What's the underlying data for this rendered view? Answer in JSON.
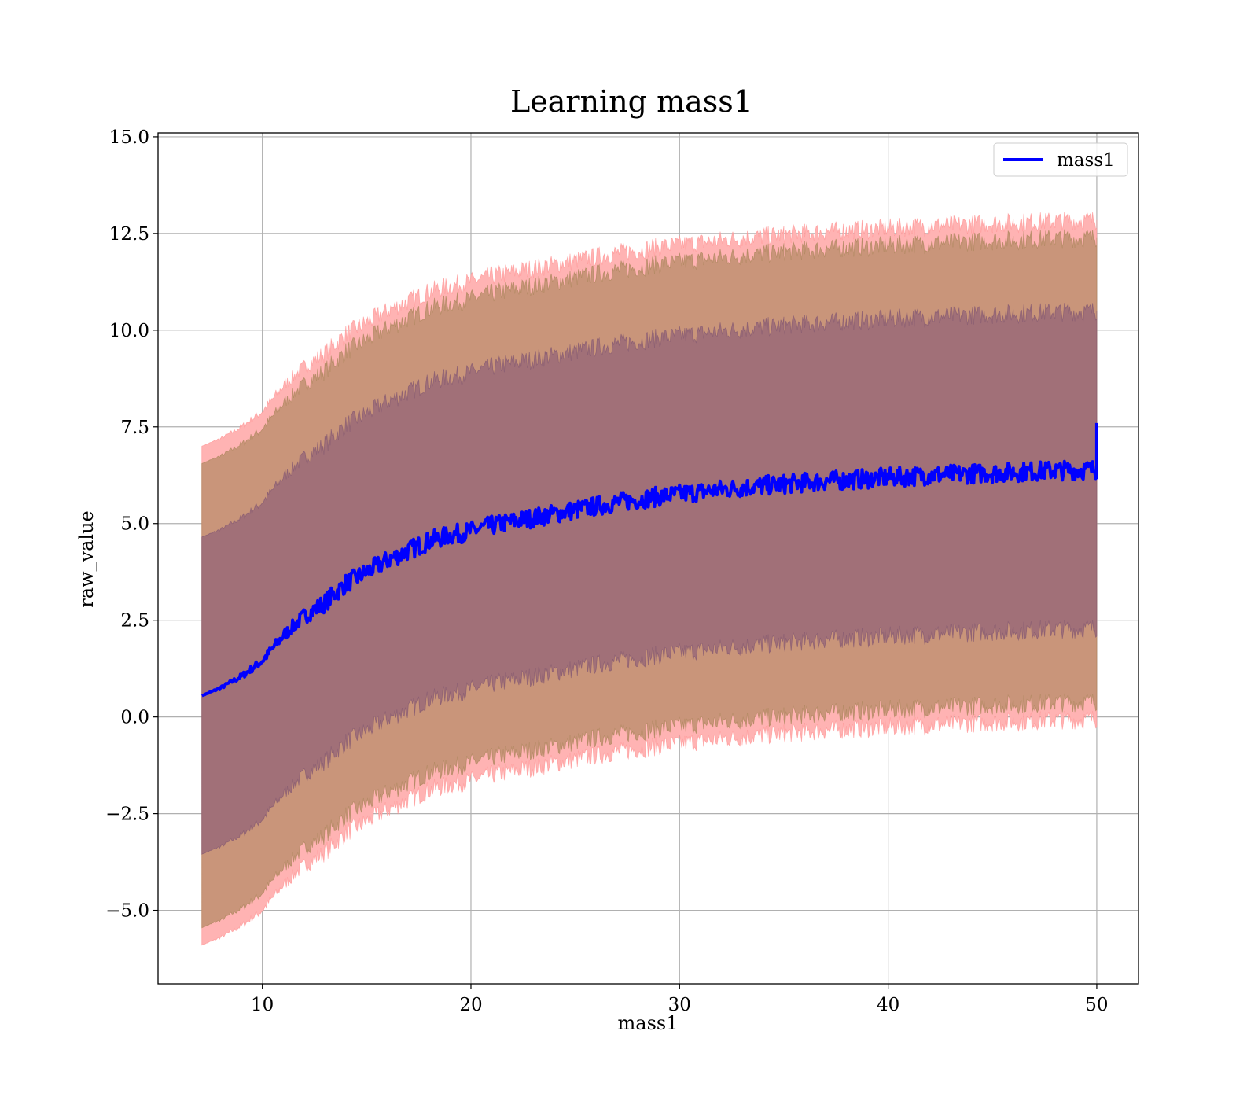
{
  "chart_data": {
    "type": "area",
    "title": "Learning mass1",
    "xlabel": "mass1",
    "ylabel": "raw_value",
    "xlim": [
      5,
      52
    ],
    "ylim": [
      -6.9,
      15.1
    ],
    "xticks": [
      10,
      20,
      30,
      40,
      50
    ],
    "xtick_labels": [
      "10",
      "20",
      "30",
      "40",
      "50"
    ],
    "yticks": [
      -5.0,
      -2.5,
      0.0,
      2.5,
      5.0,
      7.5,
      10.0,
      12.5,
      15.0
    ],
    "ytick_labels": [
      "−5.0",
      "−2.5",
      "0.0",
      "2.5",
      "5.0",
      "7.5",
      "10.0",
      "12.5",
      "15.0"
    ],
    "grid": true,
    "legend": {
      "position": "top-right",
      "entries": [
        "mass1"
      ]
    },
    "colors": {
      "line": "#0000ff",
      "band_outer": "#ffb3b3",
      "band_middle": "#c9957a",
      "band_inner": "#a17078",
      "grid": "#b0b0b0"
    },
    "series": [
      {
        "name": "mass1",
        "x": [
          7.1,
          8,
          9,
          10,
          11,
          12,
          13,
          14,
          15,
          16,
          17,
          18,
          19,
          20,
          21,
          22,
          23,
          24,
          25,
          26,
          27,
          28,
          29,
          30,
          31,
          32,
          33,
          34,
          35,
          36,
          37,
          38,
          39,
          40,
          41,
          42,
          43,
          44,
          45,
          46,
          47,
          48,
          49,
          50
        ],
        "y": [
          0.55,
          0.75,
          1.05,
          1.45,
          2.1,
          2.6,
          2.95,
          3.45,
          3.75,
          4.05,
          4.3,
          4.55,
          4.7,
          4.8,
          4.95,
          5.05,
          5.15,
          5.25,
          5.35,
          5.45,
          5.55,
          5.62,
          5.7,
          5.76,
          5.82,
          5.88,
          5.93,
          5.98,
          6.02,
          6.06,
          6.1,
          6.13,
          6.16,
          6.19,
          6.22,
          6.25,
          6.27,
          6.29,
          6.31,
          6.33,
          6.35,
          6.37,
          6.38,
          6.4
        ],
        "bands": {
          "inner_half_width": [
            4.1,
            4.1,
            4.1,
            4.1,
            4.1,
            4.1,
            4.1,
            4.1,
            4.1,
            4.1,
            4.1,
            4.1,
            4.1,
            4.1,
            4.1,
            4.1,
            4.1,
            4.1,
            4.1,
            4.1,
            4.1,
            4.1,
            4.1,
            4.1,
            4.1,
            4.1,
            4.1,
            4.1,
            4.1,
            4.1,
            4.1,
            4.1,
            4.1,
            4.1,
            4.1,
            4.1,
            4.1,
            4.1,
            4.1,
            4.1,
            4.1,
            4.1,
            4.1,
            4.1
          ],
          "middle_half_width": [
            6.0,
            6.0,
            6.0,
            6.0,
            6.0,
            6.0,
            6.0,
            6.0,
            6.0,
            6.0,
            6.0,
            6.0,
            6.0,
            6.0,
            6.0,
            6.0,
            6.0,
            6.0,
            6.0,
            6.0,
            6.0,
            6.0,
            6.0,
            6.0,
            6.0,
            6.0,
            6.0,
            6.0,
            6.0,
            6.0,
            6.0,
            6.0,
            6.0,
            6.0,
            6.0,
            6.0,
            6.0,
            6.0,
            6.0,
            6.0,
            6.0,
            6.0,
            6.0,
            6.0
          ],
          "outer_half_width": [
            6.45,
            6.45,
            6.45,
            6.45,
            6.45,
            6.45,
            6.45,
            6.45,
            6.45,
            6.45,
            6.45,
            6.45,
            6.45,
            6.45,
            6.45,
            6.45,
            6.45,
            6.45,
            6.45,
            6.45,
            6.45,
            6.45,
            6.45,
            6.45,
            6.45,
            6.45,
            6.45,
            6.45,
            6.45,
            6.45,
            6.45,
            6.45,
            6.45,
            6.45,
            6.45,
            6.45,
            6.45,
            6.45,
            6.45,
            6.45,
            6.45,
            6.45,
            6.45,
            6.45
          ]
        },
        "endpoint_spike": {
          "x": 50,
          "y": 7.6
        }
      }
    ]
  }
}
